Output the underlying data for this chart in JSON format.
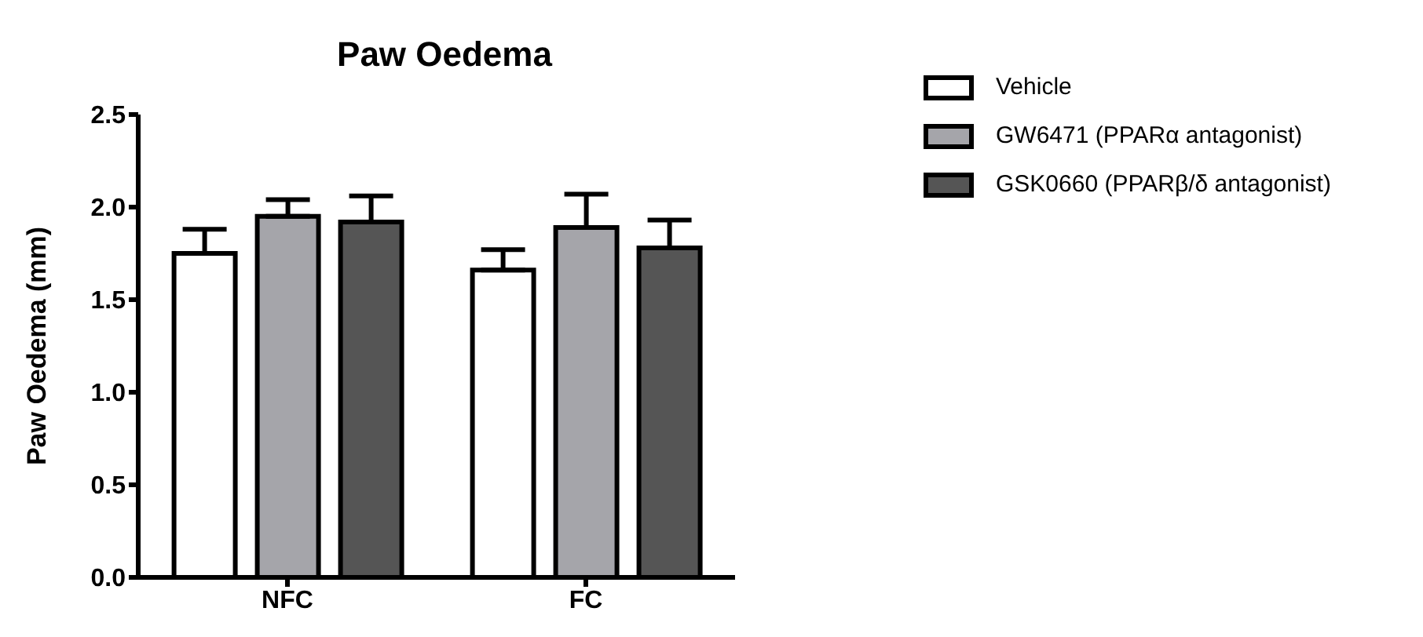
{
  "chart_data": {
    "type": "bar",
    "title": "Paw Oedema",
    "ylabel": "Paw Oedema (mm)",
    "categories": [
      "NFC",
      "FC"
    ],
    "series": [
      {
        "name": "Vehicle",
        "color": "#ffffff",
        "values": [
          1.75,
          1.66
        ],
        "errors": [
          0.13,
          0.11
        ]
      },
      {
        "name": "GW6471 (PPARα antagonist)",
        "color": "#a5a5aa",
        "values": [
          1.95,
          1.89
        ],
        "errors": [
          0.09,
          0.18
        ]
      },
      {
        "name": "GSK0660 (PPARβ/δ antagonist)",
        "color": "#555555",
        "values": [
          1.92,
          1.78
        ],
        "errors": [
          0.14,
          0.15
        ]
      }
    ],
    "ylim": [
      0,
      2.5
    ],
    "yticks": [
      {
        "value": 0,
        "label": "0.0"
      },
      0.5,
      {
        "value": 1,
        "label": "1.0"
      },
      1.5,
      {
        "value": 2,
        "label": "2.0"
      },
      2.5
    ],
    "grid": false,
    "legend": "top right"
  }
}
